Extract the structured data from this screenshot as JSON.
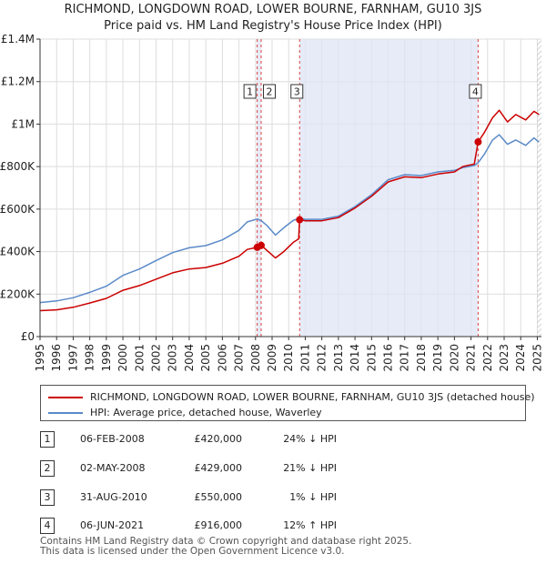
{
  "chart_data": {
    "type": "line",
    "title": "RICHMOND, LONGDOWN ROAD, LOWER BOURNE, FARNHAM, GU10 3JS",
    "subtitle": "Price paid vs. HM Land Registry's House Price Index (HPI)",
    "xlim": [
      1995,
      2025.25
    ],
    "ylim": [
      0,
      1400000
    ],
    "y_ticks": [
      0,
      200000,
      400000,
      600000,
      800000,
      1000000,
      1200000,
      1400000
    ],
    "y_tick_labels": [
      "£0",
      "£200K",
      "£400K",
      "£600K",
      "£800K",
      "£1M",
      "£1.2M",
      "£1.4M"
    ],
    "x_ticks": [
      1995,
      1996,
      1997,
      1998,
      1999,
      2000,
      2001,
      2002,
      2003,
      2004,
      2005,
      2006,
      2007,
      2008,
      2009,
      2010,
      2011,
      2012,
      2013,
      2014,
      2015,
      2016,
      2017,
      2018,
      2019,
      2020,
      2021,
      2022,
      2023,
      2024,
      2025
    ],
    "x_tick_labels": [
      "1995",
      "1996",
      "1997",
      "1998",
      "1999",
      "2000",
      "2001",
      "2002",
      "2003",
      "2004",
      "2005",
      "2006",
      "2007",
      "2008",
      "2009",
      "2010",
      "2011",
      "2012",
      "2013",
      "2014",
      "2015",
      "2016",
      "2017",
      "2018",
      "2019",
      "2020",
      "2021",
      "2022",
      "2023",
      "2024",
      "2025"
    ],
    "shaded_spans": [
      [
        2008.08,
        2008.33
      ],
      [
        2010.66,
        2021.43
      ]
    ],
    "hatched_region_start": 2025.0,
    "series": [
      {
        "name": "RICHMOND, LONGDOWN ROAD, LOWER BOURNE, FARNHAM, GU10 3JS (detached house)",
        "color": "#cc0000",
        "points": [
          [
            1995,
            122000
          ],
          [
            1996,
            126000
          ],
          [
            1997,
            138000
          ],
          [
            1998,
            158000
          ],
          [
            1999,
            180000
          ],
          [
            2000,
            218000
          ],
          [
            2001,
            240000
          ],
          [
            2002,
            270000
          ],
          [
            2003,
            300000
          ],
          [
            2004,
            318000
          ],
          [
            2005,
            325000
          ],
          [
            2006,
            345000
          ],
          [
            2007,
            378000
          ],
          [
            2007.5,
            410000
          ],
          [
            2008.1,
            420000
          ],
          [
            2008.35,
            429000
          ],
          [
            2008.7,
            405000
          ],
          [
            2009.2,
            370000
          ],
          [
            2009.7,
            400000
          ],
          [
            2010.3,
            445000
          ],
          [
            2010.6,
            460000
          ],
          [
            2010.66,
            550000
          ],
          [
            2011,
            545000
          ],
          [
            2012,
            545000
          ],
          [
            2013,
            560000
          ],
          [
            2014,
            605000
          ],
          [
            2015,
            660000
          ],
          [
            2016,
            728000
          ],
          [
            2017,
            752000
          ],
          [
            2018,
            748000
          ],
          [
            2019,
            765000
          ],
          [
            2020,
            775000
          ],
          [
            2020.5,
            800000
          ],
          [
            2021.2,
            812000
          ],
          [
            2021.43,
            916000
          ],
          [
            2021.8,
            960000
          ],
          [
            2022.3,
            1030000
          ],
          [
            2022.7,
            1065000
          ],
          [
            2023.2,
            1010000
          ],
          [
            2023.7,
            1045000
          ],
          [
            2024.3,
            1020000
          ],
          [
            2024.8,
            1060000
          ],
          [
            2025.1,
            1045000
          ]
        ]
      },
      {
        "name": "HPI: Average price, detached house, Waverley",
        "color": "#5b8ac9",
        "points": [
          [
            1995,
            160000
          ],
          [
            1996,
            168000
          ],
          [
            1997,
            183000
          ],
          [
            1998,
            208000
          ],
          [
            1999,
            237000
          ],
          [
            2000,
            288000
          ],
          [
            2001,
            318000
          ],
          [
            2002,
            358000
          ],
          [
            2003,
            395000
          ],
          [
            2004,
            418000
          ],
          [
            2005,
            428000
          ],
          [
            2006,
            455000
          ],
          [
            2007,
            500000
          ],
          [
            2007.5,
            540000
          ],
          [
            2008.1,
            553000
          ],
          [
            2008.35,
            545000
          ],
          [
            2008.7,
            522000
          ],
          [
            2009.2,
            478000
          ],
          [
            2009.7,
            512000
          ],
          [
            2010.3,
            548000
          ],
          [
            2010.66,
            556000
          ],
          [
            2011,
            552000
          ],
          [
            2012,
            552000
          ],
          [
            2013,
            567000
          ],
          [
            2014,
            612000
          ],
          [
            2015,
            668000
          ],
          [
            2016,
            738000
          ],
          [
            2017,
            762000
          ],
          [
            2018,
            758000
          ],
          [
            2019,
            775000
          ],
          [
            2020,
            782000
          ],
          [
            2020.5,
            795000
          ],
          [
            2021.2,
            805000
          ],
          [
            2021.43,
            818000
          ],
          [
            2021.8,
            858000
          ],
          [
            2022.3,
            925000
          ],
          [
            2022.7,
            950000
          ],
          [
            2023.2,
            905000
          ],
          [
            2023.7,
            925000
          ],
          [
            2024.3,
            900000
          ],
          [
            2024.8,
            935000
          ],
          [
            2025.1,
            915000
          ]
        ]
      }
    ],
    "sales": [
      {
        "label": "1",
        "x": 2008.1,
        "value": 420000
      },
      {
        "label": "2",
        "x": 2008.34,
        "value": 429000
      },
      {
        "label": "3",
        "x": 2010.66,
        "value": 550000
      },
      {
        "label": "4",
        "x": 2021.43,
        "value": 916000
      }
    ],
    "vline_labels": [
      {
        "label": "1",
        "x": 2008.1,
        "side": "left"
      },
      {
        "label": "2",
        "x": 2008.34,
        "side": "right"
      },
      {
        "label": "3",
        "x": 2010.66,
        "side": "center"
      },
      {
        "label": "4",
        "x": 2021.43,
        "side": "center"
      }
    ]
  },
  "legend": {
    "property_label": "RICHMOND, LONGDOWN ROAD, LOWER BOURNE, FARNHAM, GU10 3JS (detached house)",
    "hpi_label": "HPI: Average price, detached house, Waverley",
    "property_color": "#cc0000",
    "hpi_color": "#5b8ac9"
  },
  "sales_table": [
    {
      "num": "1",
      "date": "06-FEB-2008",
      "price": "£420,000",
      "hpi": "24% ↓ HPI"
    },
    {
      "num": "2",
      "date": "02-MAY-2008",
      "price": "£429,000",
      "hpi": "21% ↓ HPI"
    },
    {
      "num": "3",
      "date": "31-AUG-2010",
      "price": "£550,000",
      "hpi": "1% ↓ HPI"
    },
    {
      "num": "4",
      "date": "06-JUN-2021",
      "price": "£916,000",
      "hpi": "12% ↑ HPI"
    }
  ],
  "footer": {
    "line1": "Contains HM Land Registry data © Crown copyright and database right 2025.",
    "line2": "This data is licensed under the Open Government Licence v3.0."
  }
}
